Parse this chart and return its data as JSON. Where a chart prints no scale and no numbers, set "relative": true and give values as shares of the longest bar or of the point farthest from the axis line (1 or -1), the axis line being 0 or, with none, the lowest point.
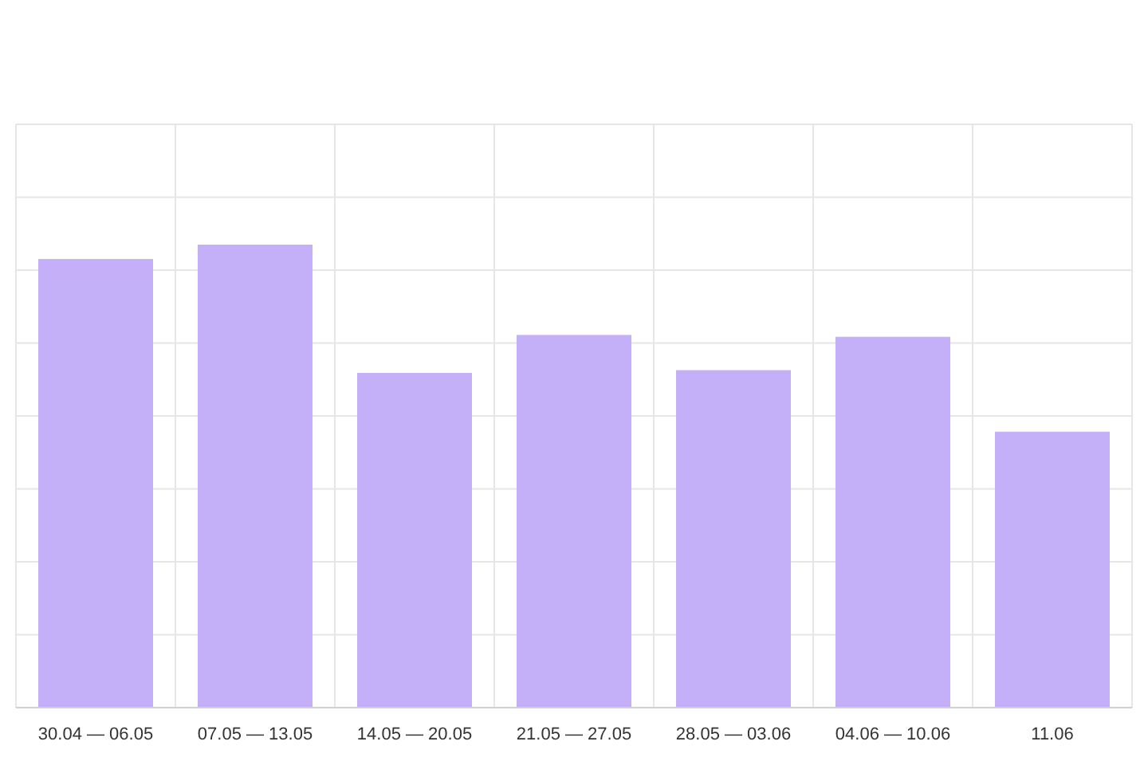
{
  "chart_data": {
    "type": "bar",
    "relative": true,
    "categories": [
      "30.04 — 06.05",
      "07.05 — 13.05",
      "14.05 — 20.05",
      "21.05 — 27.05",
      "28.05 — 03.06",
      "04.06 — 10.06",
      "11.06"
    ],
    "values": [
      0.969,
      1,
      0.723,
      0.805,
      0.729,
      0.801,
      0.596
    ],
    "color": "#c4b0f8",
    "grid": true
  }
}
